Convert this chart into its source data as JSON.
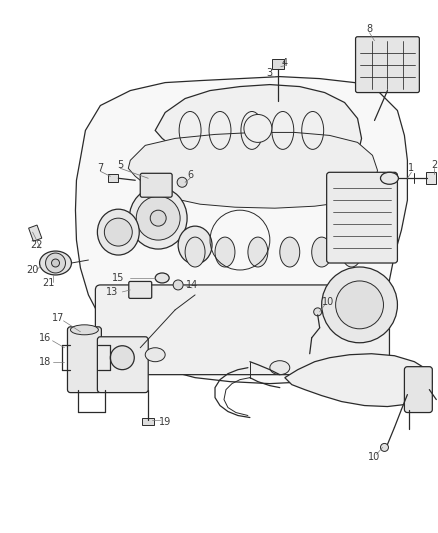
{
  "bg_color": "#ffffff",
  "line_color": "#2a2a2a",
  "label_color": "#3a3a3a",
  "fig_width": 4.38,
  "fig_height": 5.33,
  "dpi": 100
}
